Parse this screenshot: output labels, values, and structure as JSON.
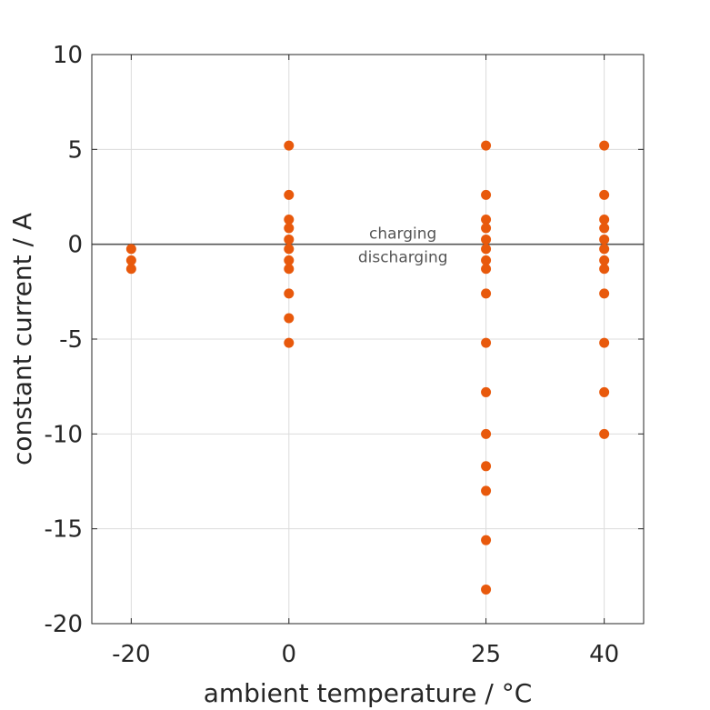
{
  "chart_data": {
    "type": "scatter",
    "xlabel": "ambient temperature / °C",
    "ylabel": "constant current / A",
    "x_ticks": [
      -20,
      0,
      25,
      40
    ],
    "y_ticks": [
      10,
      5,
      0,
      -5,
      -10,
      -15,
      -20
    ],
    "x_tick_labels": [
      "-20",
      "0",
      "25",
      "40"
    ],
    "y_tick_labels": [
      "10",
      "5",
      "0",
      "-5",
      "-10",
      "-15",
      "-20"
    ],
    "xlim": [
      -25,
      45
    ],
    "ylim": [
      -20,
      10
    ],
    "grid": true,
    "reference_line_y": 0,
    "annotations": {
      "above": "charging",
      "below": "discharging"
    },
    "marker_color": "#e8590c",
    "points": [
      {
        "x": -20,
        "y": -0.25
      },
      {
        "x": -20,
        "y": -0.85
      },
      {
        "x": -20,
        "y": -1.3
      },
      {
        "x": 0,
        "y": 5.2
      },
      {
        "x": 0,
        "y": 2.6
      },
      {
        "x": 0,
        "y": 1.3
      },
      {
        "x": 0,
        "y": 0.85
      },
      {
        "x": 0,
        "y": 0.25
      },
      {
        "x": 0,
        "y": -0.25
      },
      {
        "x": 0,
        "y": -0.85
      },
      {
        "x": 0,
        "y": -1.3
      },
      {
        "x": 0,
        "y": -2.6
      },
      {
        "x": 0,
        "y": -3.9
      },
      {
        "x": 0,
        "y": -5.2
      },
      {
        "x": 25,
        "y": 5.2
      },
      {
        "x": 25,
        "y": 2.6
      },
      {
        "x": 25,
        "y": 1.3
      },
      {
        "x": 25,
        "y": 0.85
      },
      {
        "x": 25,
        "y": 0.25
      },
      {
        "x": 25,
        "y": -0.25
      },
      {
        "x": 25,
        "y": -0.85
      },
      {
        "x": 25,
        "y": -1.3
      },
      {
        "x": 25,
        "y": -2.6
      },
      {
        "x": 25,
        "y": -5.2
      },
      {
        "x": 25,
        "y": -7.8
      },
      {
        "x": 25,
        "y": -10
      },
      {
        "x": 25,
        "y": -11.7
      },
      {
        "x": 25,
        "y": -13
      },
      {
        "x": 25,
        "y": -15.6
      },
      {
        "x": 25,
        "y": -18.2
      },
      {
        "x": 40,
        "y": 5.2
      },
      {
        "x": 40,
        "y": 2.6
      },
      {
        "x": 40,
        "y": 1.3
      },
      {
        "x": 40,
        "y": 0.85
      },
      {
        "x": 40,
        "y": 0.25
      },
      {
        "x": 40,
        "y": -0.25
      },
      {
        "x": 40,
        "y": -0.85
      },
      {
        "x": 40,
        "y": -1.3
      },
      {
        "x": 40,
        "y": -2.6
      },
      {
        "x": 40,
        "y": -5.2
      },
      {
        "x": 40,
        "y": -7.8
      },
      {
        "x": 40,
        "y": -10
      }
    ]
  }
}
